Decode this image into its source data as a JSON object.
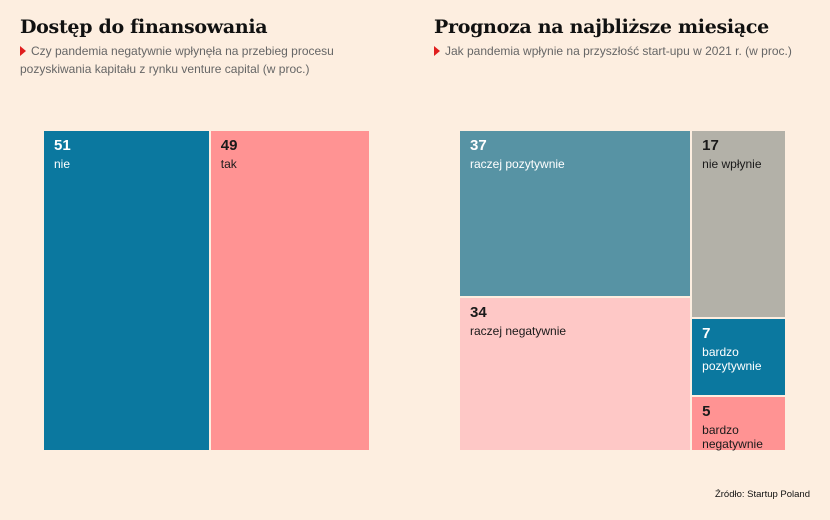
{
  "charts": {
    "left": {
      "title": "Dostęp do finansowania",
      "subtitle": "Czy pandemia negatywnie wpłynęła na przebieg procesu pozyskiwania kapitału z rynku venture capital (w proc.)"
    },
    "right": {
      "title": "Prognoza na najbliższe miesiące",
      "subtitle": "Jak pandemia wpłynie na przyszłość start-upu w 2021 r. (w proc.)"
    }
  },
  "chart_data": [
    {
      "type": "treemap",
      "title": "Dostęp do finansowania",
      "subtitle": "Czy pandemia negatywnie wpłynęła na przebieg procesu pozyskiwania kapitału z rynku venture capital (w proc.)",
      "unit": "%",
      "categories": [
        "nie",
        "tak"
      ],
      "values": [
        51,
        49
      ],
      "colors": [
        "#0b789f",
        "#ff9393"
      ]
    },
    {
      "type": "treemap",
      "title": "Prognoza na najbliższe miesiące",
      "subtitle": "Jak pandemia wpłynie na przyszłość start-upu w 2021 r. (w proc.)",
      "unit": "%",
      "categories": [
        "raczej pozytywnie",
        "raczej negatywnie",
        "nie wpłynie",
        "bardzo pozytywnie",
        "bardzo negatywnie"
      ],
      "values": [
        37,
        34,
        17,
        7,
        5
      ],
      "colors": [
        "#5793a4",
        "#fec8c6",
        "#b3b1a8",
        "#0b789f",
        "#ff9393"
      ]
    }
  ],
  "source": "Źródło: Startup Poland"
}
